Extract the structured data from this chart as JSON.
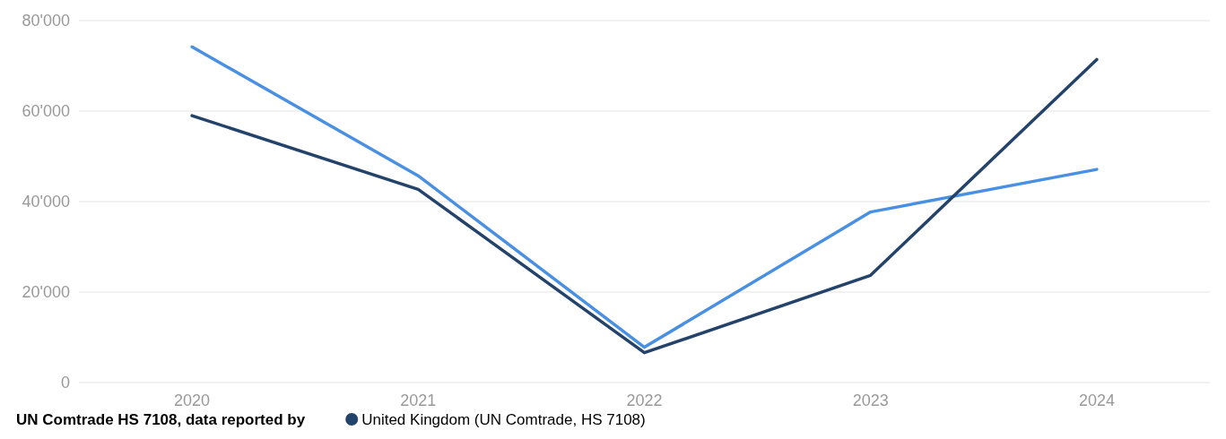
{
  "chart_data": {
    "type": "line",
    "legend_title": "UN Comtrade HS 7108, data reported by",
    "categories": [
      "2020",
      "2021",
      "2022",
      "2023",
      "2024"
    ],
    "series": [
      {
        "color": "#4a90e2",
        "values": [
          74200,
          45700,
          7800,
          37700,
          47100
        ]
      },
      {
        "name": "United Kingdom (UN Comtrade, HS 7108)",
        "color": "#24436b",
        "values": [
          59000,
          42700,
          6600,
          23700,
          71400
        ]
      }
    ],
    "ylim": [
      0,
      80000
    ],
    "yticks": [
      {
        "value": 0,
        "label": "0"
      },
      {
        "value": 20000,
        "label": "20'000"
      },
      {
        "value": 40000,
        "label": "40'000"
      },
      {
        "value": 60000,
        "label": "60'000"
      },
      {
        "value": 80000,
        "label": "80'000"
      }
    ],
    "grid": "y",
    "legend": "bottom",
    "marker": "none",
    "line_style": "solid"
  }
}
